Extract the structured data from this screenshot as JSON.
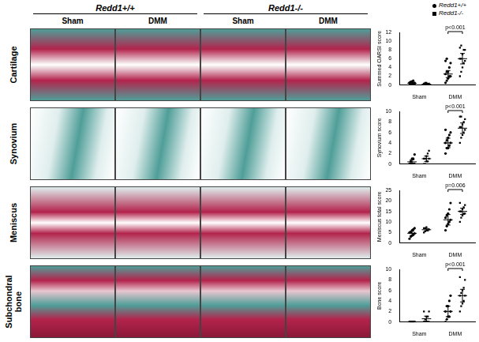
{
  "figure": {
    "column_groups": [
      {
        "label": "Redd1+/+",
        "columns": [
          "Sham",
          "DMM"
        ]
      },
      {
        "label": "Redd1-/-",
        "columns": [
          "Sham",
          "DMM"
        ]
      }
    ],
    "rows": [
      "Cartilage",
      "Synovium",
      "Meniscus",
      "Subchondral bone"
    ]
  },
  "chart_data": [
    {
      "type": "scatter",
      "y_label": "Summed OARSI score",
      "categories": [
        "Sham",
        "DMM"
      ],
      "ylim": [
        0,
        12
      ],
      "yticks": [
        0,
        2,
        4,
        6,
        8,
        10,
        12
      ],
      "grid": false,
      "legend": "top-right",
      "series": [
        {
          "name": "Redd1+/+",
          "color": "#000000",
          "marker": "circle",
          "values": [
            [
              0,
              0,
              0,
              0.3,
              0.5,
              0.5,
              0.7,
              0.8,
              1,
              0.3,
              0.5
            ],
            [
              0.5,
              1,
              1.5,
              2,
              2,
              2.5,
              3,
              3,
              4,
              5,
              5.5,
              6
            ]
          ],
          "mean": [
            0.4,
            2.5
          ],
          "error": [
            0.2,
            0.8
          ]
        },
        {
          "name": "Redd1-/-",
          "color": "#000000",
          "marker": "square",
          "values": [
            [
              0,
              0,
              0,
              0,
              0.3,
              0.3,
              0.5,
              0.5,
              0.2
            ],
            [
              2,
              3,
              4,
              5,
              5.5,
              6,
              6,
              7,
              8,
              8,
              8.5,
              9
            ]
          ],
          "mean": [
            0.2,
            6
          ],
          "error": [
            0.15,
            1.2
          ]
        }
      ],
      "annotations": [
        {
          "text": "p<0.001",
          "category": "DMM"
        }
      ]
    },
    {
      "type": "scatter",
      "y_label": "Synovium score",
      "categories": [
        "Sham",
        "DMM"
      ],
      "ylim": [
        0,
        10
      ],
      "yticks": [
        0,
        2,
        4,
        6,
        8,
        10
      ],
      "grid": false,
      "series": [
        {
          "name": "Redd1+/+",
          "color": "#000000",
          "marker": "circle",
          "values": [
            [
              0,
              0,
              0,
              0,
              0,
              0,
              0.5,
              1,
              1,
              1.8
            ],
            [
              2,
              3,
              3,
              3.5,
              4,
              4,
              4.5,
              5,
              5.5,
              6,
              6.5
            ]
          ],
          "mean": [
            0.4,
            4
          ],
          "error": [
            0.4,
            0.9
          ]
        },
        {
          "name": "Redd1-/-",
          "color": "#000000",
          "marker": "square",
          "values": [
            [
              0,
              0,
              0.5,
              0.5,
              1,
              1,
              1,
              1.5,
              2,
              2.5
            ],
            [
              4,
              5,
              5.5,
              6,
              6.5,
              7,
              7,
              7.5,
              8,
              8.5,
              9,
              9
            ]
          ],
          "mean": [
            1,
            6.8
          ],
          "error": [
            0.5,
            1
          ]
        }
      ],
      "annotations": [
        {
          "text": "p<0.001",
          "category": "DMM"
        }
      ]
    },
    {
      "type": "scatter",
      "y_label": "Meniscus total score",
      "categories": [
        "Sham",
        "DMM"
      ],
      "ylim": [
        0,
        25
      ],
      "yticks": [
        0,
        5,
        10,
        15,
        20,
        25
      ],
      "grid": false,
      "series": [
        {
          "name": "Redd1+/+",
          "color": "#000000",
          "marker": "circle",
          "values": [
            [
              2,
              3,
              3.5,
              4,
              4.5,
              5,
              5,
              6,
              6.5,
              7
            ],
            [
              6,
              8,
              9,
              10,
              11,
              12,
              13,
              14,
              16,
              19
            ]
          ],
          "mean": [
            4.6,
            11
          ],
          "error": [
            1,
            2.5
          ]
        },
        {
          "name": "Redd1-/-",
          "color": "#000000",
          "marker": "square",
          "values": [
            [
              5,
              5.5,
              6,
              6,
              6.5,
              7,
              7,
              7.5
            ],
            [
              10,
              12,
              13,
              14,
              14,
              15,
              15,
              16,
              17,
              18,
              19
            ]
          ],
          "mean": [
            6.3,
            15
          ],
          "error": [
            0.6,
            1.5
          ]
        }
      ],
      "annotations": [
        {
          "text": "p=0.006",
          "category": "DMM"
        }
      ]
    },
    {
      "type": "scatter",
      "y_label": "Bone score",
      "categories": [
        "Sham",
        "DMM"
      ],
      "ylim": [
        0,
        10
      ],
      "yticks": [
        0,
        2,
        4,
        6,
        8,
        10
      ],
      "grid": false,
      "series": [
        {
          "name": "Redd1+/+",
          "color": "#000000",
          "marker": "circle",
          "values": [
            [
              0,
              0,
              0,
              0,
              0,
              0,
              0,
              0,
              0,
              0
            ],
            [
              0,
              0.5,
              1,
              1,
              2,
              2,
              3,
              3,
              4,
              5
            ]
          ],
          "mean": [
            0,
            2
          ],
          "error": [
            0,
            1
          ]
        },
        {
          "name": "Redd1-/-",
          "color": "#000000",
          "marker": "square",
          "values": [
            [
              0,
              0,
              0,
              0,
              0,
              0,
              0.5,
              1,
              1,
              2,
              2
            ],
            [
              2,
              3,
              3.5,
              4,
              5,
              5,
              5.5,
              6,
              6.5,
              8,
              8.5
            ]
          ],
          "mean": [
            0.6,
            5
          ],
          "error": [
            0.5,
            1.2
          ]
        }
      ],
      "annotations": [
        {
          "text": "p<0.001",
          "category": "DMM"
        }
      ]
    }
  ]
}
